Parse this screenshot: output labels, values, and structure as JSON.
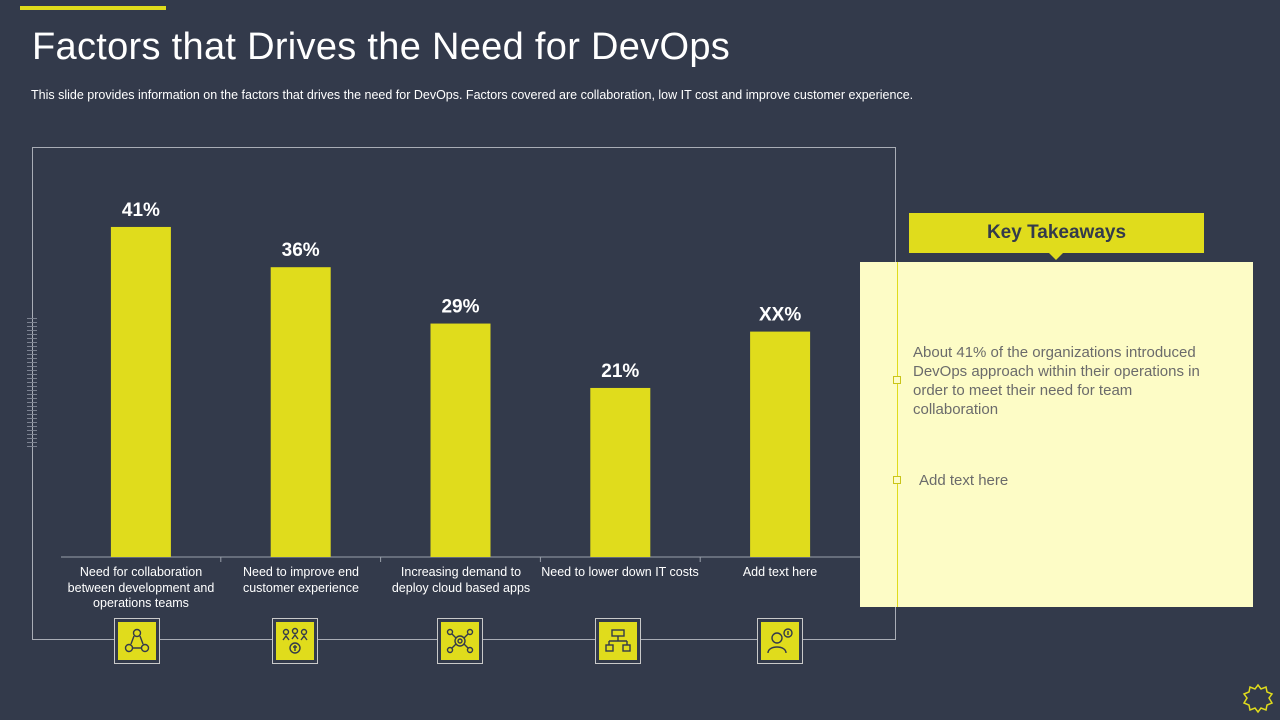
{
  "slide": {
    "title": "Factors that Drives the Need for DevOps",
    "subtitle": "This slide provides  information  on the factors that drives  the need for DevOps.  Factors covered  are collaboration,  low IT cost and improve  customer experience."
  },
  "colors": {
    "background": "#333a4b",
    "accent": "#e0dc1c",
    "takeaway_bg": "#fdfcc6",
    "text_light": "#ffffff",
    "text_muted": "#6b6b6b"
  },
  "chart_data": {
    "type": "bar",
    "categories": [
      "Need for collaboration between development and operations teams",
      "Need to improve end customer experience",
      "Increasing demand to deploy cloud based apps",
      "Need to lower down IT costs",
      "Add text here"
    ],
    "values": [
      41,
      36,
      29,
      21,
      null
    ],
    "data_labels": [
      "41%",
      "36%",
      "29%",
      "21%",
      "XX%"
    ],
    "placeholder_estimate": 28,
    "ylim": [
      0,
      50
    ],
    "grid": false,
    "legend": "none",
    "bar_color": "#e0dc1c",
    "icons": [
      "team-collaboration-icon",
      "customer-money-icon",
      "cloud-apps-network-icon",
      "cost-reduction-icon",
      "person-money-icon"
    ]
  },
  "takeaways": {
    "header": "Key Takeaways",
    "items": [
      "About 41% of the organizations introduced DevOps approach within their operations in order to meet their need for team collaboration",
      "Add text here"
    ]
  }
}
